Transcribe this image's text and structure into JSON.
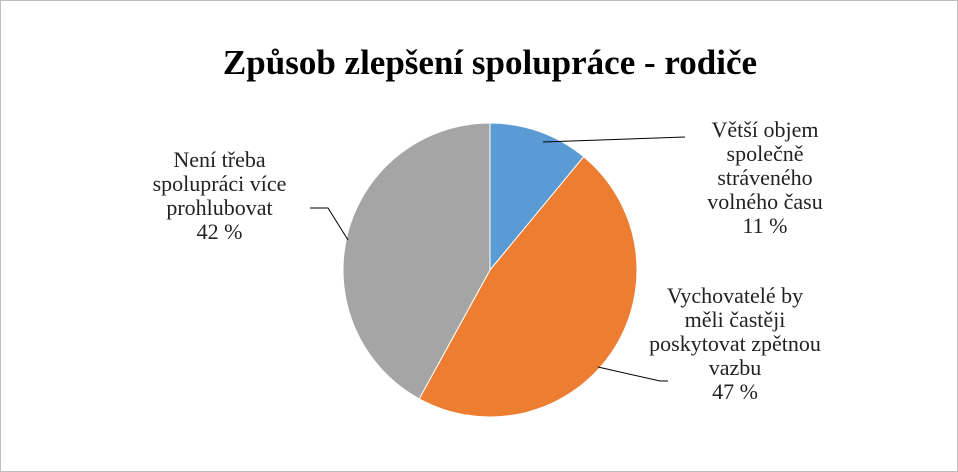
{
  "chart_data": {
    "type": "pie",
    "title": "Způsob zlepšení spolupráce - rodiče",
    "categories": [
      "Větší objem společně stráveného volného času",
      "Vychovatelé by měli častěji poskytovat zpětnou vazbu",
      "Není třeba spolupráci více prohlubovat"
    ],
    "values": [
      11,
      47,
      42
    ],
    "value_labels": [
      "11 %",
      "47 %",
      "42 %"
    ],
    "colors": [
      "#5b9bd5",
      "#ed7d31",
      "#a5a5a5"
    ]
  }
}
